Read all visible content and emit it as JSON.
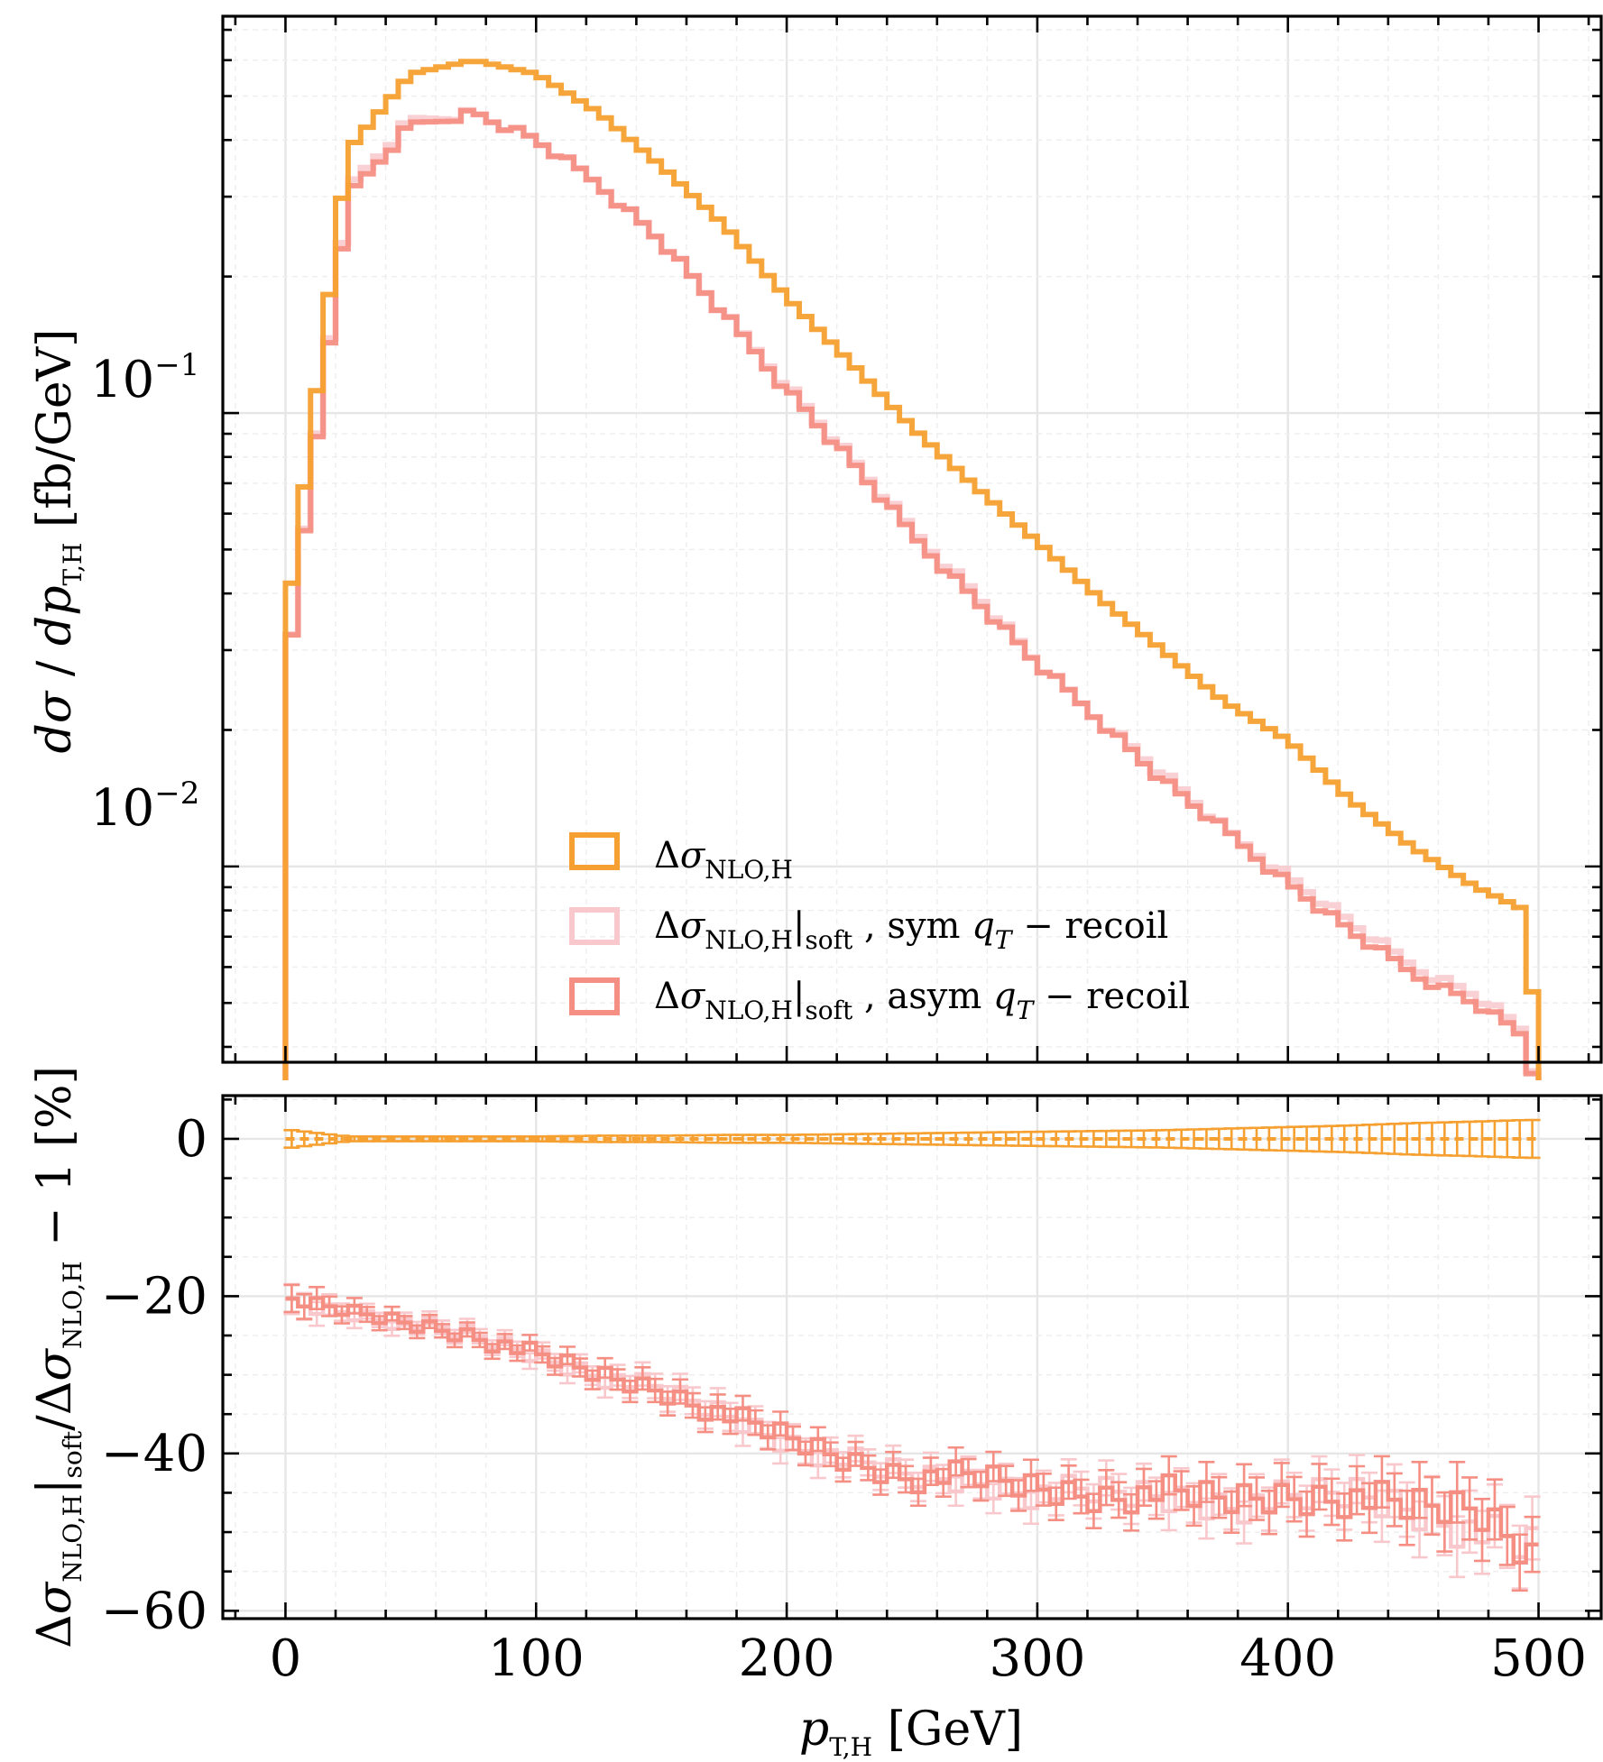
{
  "chart_data": [
    {
      "type": "line",
      "panel": "main",
      "drawstyle": "steps-mid",
      "xlabel": "p_T,H [GeV]",
      "ylabel": "dσ/dp_T,H [fb/GeV]",
      "yscale": "log",
      "xlim": [
        -25,
        525
      ],
      "ylim": [
        0.0037,
        0.75
      ],
      "xticks": [
        0,
        100,
        200,
        300,
        400,
        500
      ],
      "yticks": [
        "10^-1",
        "10^-2"
      ],
      "grid": true,
      "legend_position": "lower-center",
      "legend": [
        {
          "label": "Δσ_NLO,H",
          "color": "#f5a030"
        },
        {
          "label": "Δσ_NLO,H|soft , sym q_T − recoil",
          "color": "#f8c8cc"
        },
        {
          "label": "Δσ_NLO,H|soft , asym q_T − recoil",
          "color": "#f58f84"
        }
      ],
      "x": [
        0,
        25,
        50,
        75,
        100,
        125,
        150,
        175,
        200,
        225,
        250,
        275,
        300,
        325,
        350,
        375,
        400,
        425,
        450,
        475,
        495,
        500
      ],
      "series": [
        {
          "name": "Δσ_NLO,H",
          "color": "#f5a030",
          "values": [
            0.033,
            0.38,
            0.56,
            0.6,
            0.56,
            0.46,
            0.35,
            0.26,
            0.18,
            0.13,
            0.093,
            0.069,
            0.052,
            0.039,
            0.03,
            0.023,
            0.019,
            0.014,
            0.011,
            0.009,
            0.008,
            0.0035
          ]
        },
        {
          "name": "Δσ_NLO,H|soft , sym q_T − recoil",
          "color": "#f8c8cc",
          "values": [
            0.026,
            0.31,
            0.44,
            0.46,
            0.4,
            0.32,
            0.24,
            0.165,
            0.115,
            0.08,
            0.055,
            0.04,
            0.028,
            0.021,
            0.016,
            0.012,
            0.0095,
            0.0075,
            0.006,
            0.0052,
            0.0043,
            0.003
          ]
        },
        {
          "name": "Δσ_NLO,H|soft , asym q_T − recoil",
          "color": "#f58f84",
          "values": [
            0.026,
            0.3,
            0.43,
            0.46,
            0.4,
            0.32,
            0.24,
            0.165,
            0.113,
            0.079,
            0.054,
            0.039,
            0.028,
            0.021,
            0.0155,
            0.012,
            0.0092,
            0.0072,
            0.0058,
            0.005,
            0.0042,
            0.003
          ]
        }
      ]
    },
    {
      "type": "line",
      "panel": "ratio",
      "drawstyle": "steps-mid-with-errorbars",
      "xlabel": "p_T,H [GeV]",
      "ylabel": "Δσ_NLO,H|soft/Δσ_NLO,H − 1 [%]",
      "xlim": [
        -25,
        525
      ],
      "ylim": [
        -61,
        5.5
      ],
      "xticks": [
        0,
        100,
        200,
        300,
        400,
        500
      ],
      "yticks": [
        0,
        -20,
        -40,
        -60
      ],
      "grid": true,
      "x": [
        0,
        25,
        50,
        75,
        100,
        125,
        150,
        175,
        200,
        225,
        250,
        275,
        300,
        325,
        350,
        375,
        400,
        425,
        450,
        475,
        495,
        500
      ],
      "series": [
        {
          "name": "Δσ_NLO,H",
          "color": "#f5a030",
          "values": [
            0,
            0,
            0,
            0,
            0,
            0,
            0,
            0,
            0,
            0,
            0,
            0,
            0,
            0,
            0,
            0,
            0,
            0,
            0,
            0,
            0,
            0
          ],
          "errors": [
            1.2,
            0.3,
            0.3,
            0.3,
            0.3,
            0.4,
            0.4,
            0.5,
            0.5,
            0.6,
            0.7,
            0.8,
            0.9,
            1.0,
            1.1,
            1.3,
            1.5,
            1.7,
            2.0,
            2.2,
            2.4,
            2.4
          ]
        },
        {
          "name": "Δσ_NLO,H|soft , sym q_T − recoil",
          "color": "#f8c8cc",
          "values": [
            -21,
            -22,
            -23.5,
            -25,
            -27.5,
            -30,
            -32,
            -35,
            -38.5,
            -41,
            -43,
            -43.5,
            -45,
            -45,
            -45.5,
            -46.5,
            -46,
            -45,
            -47,
            -50,
            -52,
            -52
          ],
          "errors": [
            2.0,
            1.0,
            0.8,
            0.9,
            1.0,
            1.2,
            1.6,
            1.8,
            1.6,
            1.6,
            1.8,
            1.8,
            2.0,
            2.2,
            2.4,
            2.6,
            2.8,
            3.0,
            3.5,
            4.0,
            4.0,
            4.0
          ]
        },
        {
          "name": "Δσ_NLO,H|soft , asym q_T − recoil",
          "color": "#f58f84",
          "values": [
            -20.5,
            -22,
            -23.5,
            -25,
            -27.5,
            -30,
            -32,
            -35,
            -38,
            -41,
            -43,
            -43,
            -44.5,
            -45.5,
            -45,
            -46,
            -45.5,
            -45.5,
            -47,
            -47,
            -52,
            -54
          ],
          "errors": [
            1.8,
            1.0,
            0.8,
            0.9,
            1.0,
            1.2,
            1.5,
            1.6,
            1.5,
            1.5,
            1.7,
            1.8,
            2.0,
            2.2,
            2.4,
            2.6,
            2.8,
            3.0,
            3.5,
            4.0,
            3.5,
            3.5
          ]
        }
      ]
    }
  ]
}
